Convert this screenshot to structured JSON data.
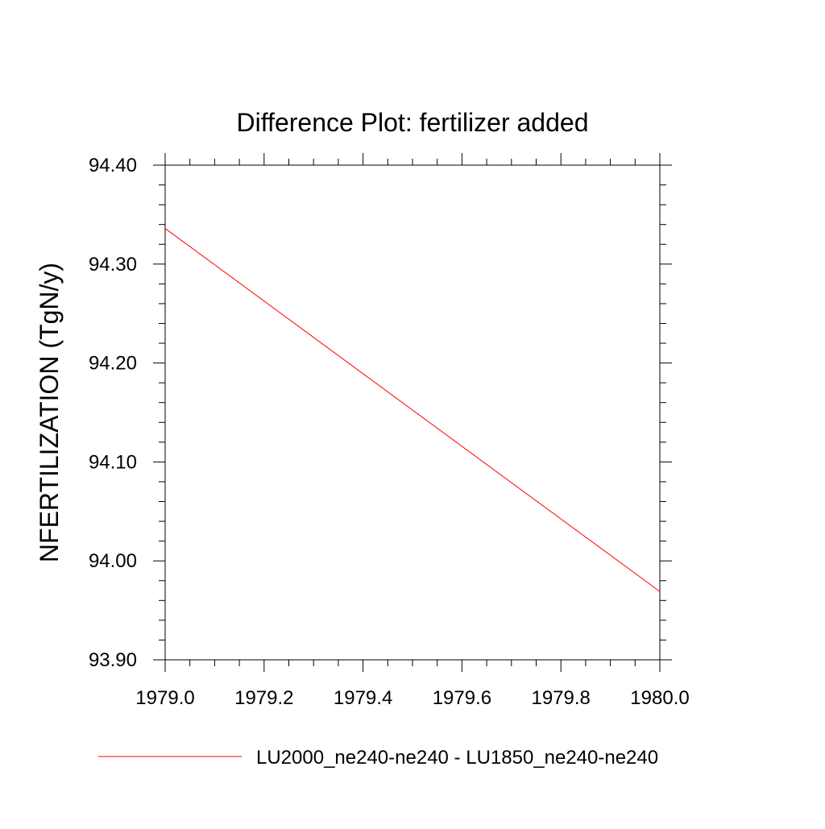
{
  "chart_data": {
    "type": "line",
    "title": "Difference Plot: fertilizer added",
    "xlabel": "",
    "ylabel": "NFERTILIZATION  (TgN/y)",
    "xlim": [
      1979.0,
      1980.0
    ],
    "ylim": [
      93.9,
      94.4
    ],
    "x_ticks": [
      "1979.0",
      "1979.2",
      "1979.4",
      "1979.6",
      "1979.8",
      "1980.0"
    ],
    "y_ticks": [
      "93.90",
      "94.00",
      "94.10",
      "94.20",
      "94.30",
      "94.40"
    ],
    "grid": false,
    "legend_position": "bottom",
    "series": [
      {
        "name": "LU2000_ne240-ne240 - LU1850_ne240-ne240",
        "color": "#ff0000",
        "x": [
          1979.0,
          1980.0
        ],
        "y": [
          94.336,
          93.969
        ]
      }
    ]
  }
}
